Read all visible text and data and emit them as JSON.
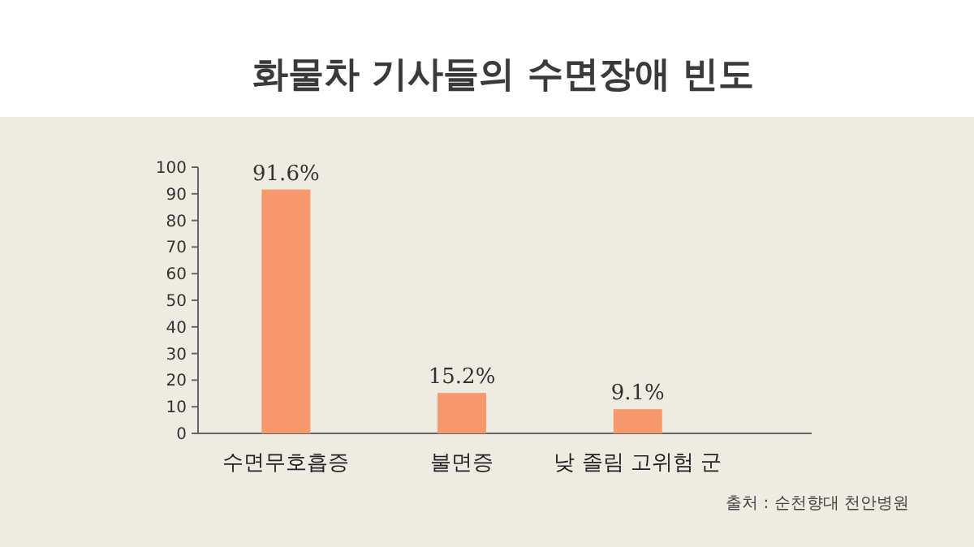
{
  "chart_data": {
    "type": "bar",
    "title": "화물차 기사들의 수면장애 빈도",
    "categories": [
      "수면무호흡증",
      "불면증",
      "낮 졸림 고위험 군"
    ],
    "values": [
      91.6,
      15.2,
      9.1
    ],
    "value_labels": [
      "91.6%",
      "15.2%",
      "9.1%"
    ],
    "color": "#f69a6e",
    "ylim": [
      0,
      100
    ],
    "yticks": [
      0,
      10,
      20,
      30,
      40,
      50,
      60,
      70,
      80,
      90,
      100
    ],
    "annotations": [
      "출처 : 순천향대 천안병원"
    ]
  }
}
